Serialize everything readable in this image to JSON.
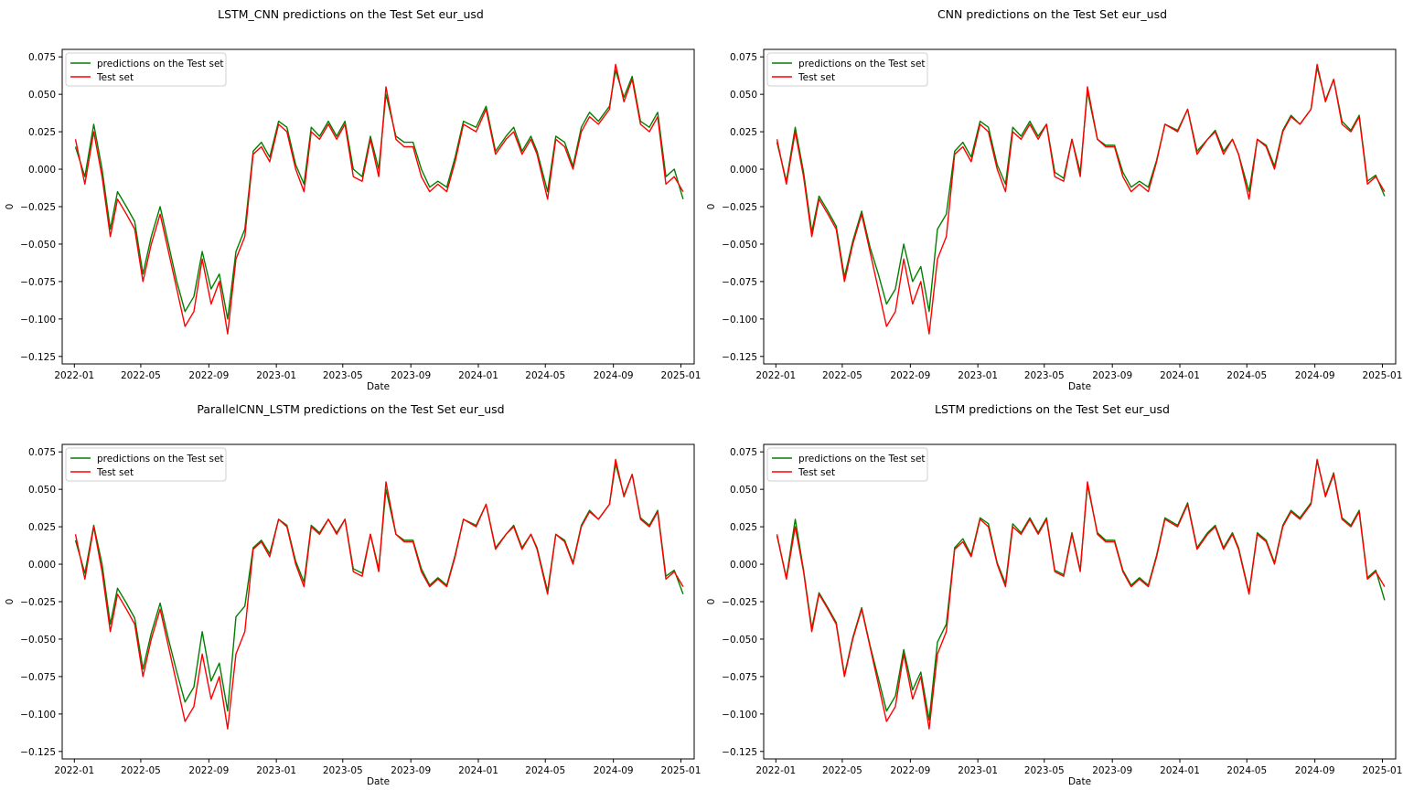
{
  "colors": {
    "prediction": "#008000",
    "test": "#ff0000",
    "axis": "#000000"
  },
  "common": {
    "xlabel": "Date",
    "ylabel": "0",
    "legend": [
      "predictions on the Test set",
      "Test set"
    ],
    "xticks": [
      "2022-01",
      "2022-05",
      "2022-09",
      "2023-01",
      "2023-05",
      "2023-09",
      "2024-01",
      "2024-05",
      "2024-09",
      "2025-01"
    ],
    "yticks": [
      "0.075",
      "0.050",
      "0.025",
      "0.000",
      "−0.025",
      "−0.050",
      "−0.075",
      "−0.100",
      "−0.125"
    ]
  },
  "chart_data": [
    {
      "type": "line",
      "title": "LSTM_CNN predictions on the Test Set eur_usd",
      "xlabel": "Date",
      "ylabel": "0",
      "xlim": [
        "2021-12-10",
        "2025-01-25"
      ],
      "ylim": [
        -0.13,
        0.08
      ],
      "grid": false,
      "legend_position": "upper-left",
      "series": [
        {
          "name": "predictions on the Test set",
          "color": "#008000"
        },
        {
          "name": "Test set",
          "color": "#ff0000"
        }
      ],
      "x": [
        "2022-01-03",
        "2022-01-20",
        "2022-02-05",
        "2022-02-20",
        "2022-03-07",
        "2022-03-20",
        "2022-04-05",
        "2022-04-20",
        "2022-05-05",
        "2022-05-20",
        "2022-06-05",
        "2022-06-20",
        "2022-07-05",
        "2022-07-20",
        "2022-08-05",
        "2022-08-20",
        "2022-09-05",
        "2022-09-20",
        "2022-10-05",
        "2022-10-20",
        "2022-11-05",
        "2022-11-20",
        "2022-12-05",
        "2022-12-20",
        "2023-01-05",
        "2023-01-20",
        "2023-02-05",
        "2023-02-20",
        "2023-03-05",
        "2023-03-20",
        "2023-04-05",
        "2023-04-20",
        "2023-05-05",
        "2023-05-20",
        "2023-06-05",
        "2023-06-20",
        "2023-07-05",
        "2023-07-18",
        "2023-08-05",
        "2023-08-20",
        "2023-09-05",
        "2023-09-20",
        "2023-10-05",
        "2023-10-20",
        "2023-11-05",
        "2023-11-20",
        "2023-12-05",
        "2023-12-28",
        "2024-01-15",
        "2024-02-01",
        "2024-02-20",
        "2024-03-05",
        "2024-03-20",
        "2024-04-05",
        "2024-04-16",
        "2024-05-05",
        "2024-05-20",
        "2024-06-05",
        "2024-06-20",
        "2024-07-05",
        "2024-07-20",
        "2024-08-05",
        "2024-08-25",
        "2024-09-05",
        "2024-09-20",
        "2024-10-05",
        "2024-10-20",
        "2024-11-05",
        "2024-11-20",
        "2024-12-05",
        "2024-12-20",
        "2025-01-05"
      ],
      "test": [
        0.02,
        -0.01,
        0.025,
        -0.005,
        -0.045,
        -0.02,
        -0.03,
        -0.04,
        -0.075,
        -0.05,
        -0.03,
        -0.055,
        -0.08,
        -0.105,
        -0.095,
        -0.06,
        -0.09,
        -0.075,
        -0.11,
        -0.06,
        -0.045,
        0.01,
        0.015,
        0.005,
        0.03,
        0.025,
        0.0,
        -0.015,
        0.025,
        0.02,
        0.03,
        0.02,
        0.03,
        -0.005,
        -0.008,
        0.02,
        -0.005,
        0.055,
        0.02,
        0.015,
        0.015,
        -0.005,
        -0.015,
        -0.01,
        -0.015,
        0.005,
        0.03,
        0.025,
        0.04,
        0.01,
        0.02,
        0.025,
        0.01,
        0.02,
        0.01,
        -0.02,
        0.02,
        0.015,
        0.0,
        0.025,
        0.035,
        0.03,
        0.04,
        0.07,
        0.045,
        0.06,
        0.03,
        0.025,
        0.035,
        -0.01,
        -0.005,
        -0.015
      ],
      "pred": [
        0.015,
        -0.005,
        0.03,
        0.0,
        -0.04,
        -0.015,
        -0.025,
        -0.035,
        -0.07,
        -0.045,
        -0.025,
        -0.05,
        -0.075,
        -0.095,
        -0.085,
        -0.055,
        -0.08,
        -0.07,
        -0.1,
        -0.055,
        -0.04,
        0.012,
        0.018,
        0.008,
        0.032,
        0.028,
        0.003,
        -0.01,
        0.028,
        0.022,
        0.032,
        0.022,
        0.032,
        0.0,
        -0.005,
        0.022,
        0.0,
        0.05,
        0.022,
        0.018,
        0.018,
        0.0,
        -0.012,
        -0.008,
        -0.012,
        0.008,
        0.032,
        0.028,
        0.042,
        0.012,
        0.022,
        0.028,
        0.012,
        0.022,
        0.012,
        -0.015,
        0.022,
        0.018,
        0.002,
        0.028,
        0.038,
        0.032,
        0.042,
        0.066,
        0.048,
        0.062,
        0.032,
        0.028,
        0.038,
        -0.005,
        0.0,
        -0.02
      ]
    },
    {
      "type": "line",
      "title": "CNN predictions on the Test Set eur_usd",
      "xlabel": "Date",
      "ylabel": "0",
      "xlim": [
        "2021-12-10",
        "2025-01-25"
      ],
      "ylim": [
        -0.13,
        0.08
      ],
      "grid": false,
      "legend_position": "upper-left",
      "series": [
        {
          "name": "predictions on the Test set",
          "color": "#008000"
        },
        {
          "name": "Test set",
          "color": "#ff0000"
        }
      ],
      "x": [
        "2022-01-03",
        "2022-01-20",
        "2022-02-05",
        "2022-02-20",
        "2022-03-07",
        "2022-03-20",
        "2022-04-05",
        "2022-04-20",
        "2022-05-05",
        "2022-05-20",
        "2022-06-05",
        "2022-06-20",
        "2022-07-05",
        "2022-07-20",
        "2022-08-05",
        "2022-08-20",
        "2022-09-05",
        "2022-09-20",
        "2022-10-05",
        "2022-10-20",
        "2022-11-05",
        "2022-11-20",
        "2022-12-05",
        "2022-12-20",
        "2023-01-05",
        "2023-01-20",
        "2023-02-05",
        "2023-02-20",
        "2023-03-05",
        "2023-03-20",
        "2023-04-05",
        "2023-04-20",
        "2023-05-05",
        "2023-05-20",
        "2023-06-05",
        "2023-06-20",
        "2023-07-05",
        "2023-07-18",
        "2023-08-05",
        "2023-08-20",
        "2023-09-05",
        "2023-09-20",
        "2023-10-05",
        "2023-10-20",
        "2023-11-05",
        "2023-11-20",
        "2023-12-05",
        "2023-12-28",
        "2024-01-15",
        "2024-02-01",
        "2024-02-20",
        "2024-03-05",
        "2024-03-20",
        "2024-04-05",
        "2024-04-16",
        "2024-05-05",
        "2024-05-20",
        "2024-06-05",
        "2024-06-20",
        "2024-07-05",
        "2024-07-20",
        "2024-08-05",
        "2024-08-25",
        "2024-09-05",
        "2024-09-20",
        "2024-10-05",
        "2024-10-20",
        "2024-11-05",
        "2024-11-20",
        "2024-12-05",
        "2024-12-20",
        "2025-01-05"
      ],
      "test": [
        0.02,
        -0.01,
        0.025,
        -0.005,
        -0.045,
        -0.02,
        -0.03,
        -0.04,
        -0.075,
        -0.05,
        -0.03,
        -0.055,
        -0.08,
        -0.105,
        -0.095,
        -0.06,
        -0.09,
        -0.075,
        -0.11,
        -0.06,
        -0.045,
        0.01,
        0.015,
        0.005,
        0.03,
        0.025,
        0.0,
        -0.015,
        0.025,
        0.02,
        0.03,
        0.02,
        0.03,
        -0.005,
        -0.008,
        0.02,
        -0.005,
        0.055,
        0.02,
        0.015,
        0.015,
        -0.005,
        -0.015,
        -0.01,
        -0.015,
        0.005,
        0.03,
        0.025,
        0.04,
        0.01,
        0.02,
        0.025,
        0.01,
        0.02,
        0.01,
        -0.02,
        0.02,
        0.015,
        0.0,
        0.025,
        0.035,
        0.03,
        0.04,
        0.07,
        0.045,
        0.06,
        0.03,
        0.025,
        0.035,
        -0.01,
        -0.005,
        -0.015
      ],
      "pred": [
        0.018,
        -0.008,
        0.028,
        -0.002,
        -0.042,
        -0.018,
        -0.028,
        -0.038,
        -0.072,
        -0.048,
        -0.028,
        -0.052,
        -0.07,
        -0.09,
        -0.08,
        -0.05,
        -0.075,
        -0.065,
        -0.095,
        -0.04,
        -0.03,
        0.012,
        0.018,
        0.008,
        0.032,
        0.028,
        0.003,
        -0.01,
        0.028,
        0.022,
        0.032,
        0.022,
        0.03,
        -0.002,
        -0.006,
        0.02,
        -0.002,
        0.052,
        0.02,
        0.016,
        0.016,
        -0.002,
        -0.012,
        -0.008,
        -0.012,
        0.006,
        0.03,
        0.026,
        0.04,
        0.012,
        0.02,
        0.026,
        0.012,
        0.02,
        0.01,
        -0.015,
        0.02,
        0.016,
        0.002,
        0.026,
        0.036,
        0.03,
        0.04,
        0.068,
        0.046,
        0.06,
        0.032,
        0.026,
        0.036,
        -0.008,
        -0.004,
        -0.018
      ]
    },
    {
      "type": "line",
      "title": "ParallelCNN_LSTM predictions on the Test Set eur_usd",
      "xlabel": "Date",
      "ylabel": "0",
      "xlim": [
        "2021-12-10",
        "2025-01-25"
      ],
      "ylim": [
        -0.13,
        0.08
      ],
      "grid": false,
      "legend_position": "upper-left",
      "series": [
        {
          "name": "predictions on the Test set",
          "color": "#008000"
        },
        {
          "name": "Test set",
          "color": "#ff0000"
        }
      ],
      "x": [
        "2022-01-03",
        "2022-01-20",
        "2022-02-05",
        "2022-02-20",
        "2022-03-07",
        "2022-03-20",
        "2022-04-05",
        "2022-04-20",
        "2022-05-05",
        "2022-05-20",
        "2022-06-05",
        "2022-06-20",
        "2022-07-05",
        "2022-07-20",
        "2022-08-05",
        "2022-08-20",
        "2022-09-05",
        "2022-09-20",
        "2022-10-05",
        "2022-10-20",
        "2022-11-05",
        "2022-11-20",
        "2022-12-05",
        "2022-12-20",
        "2023-01-05",
        "2023-01-20",
        "2023-02-05",
        "2023-02-20",
        "2023-03-05",
        "2023-03-20",
        "2023-04-05",
        "2023-04-20",
        "2023-05-05",
        "2023-05-20",
        "2023-06-05",
        "2023-06-20",
        "2023-07-05",
        "2023-07-18",
        "2023-08-05",
        "2023-08-20",
        "2023-09-05",
        "2023-09-20",
        "2023-10-05",
        "2023-10-20",
        "2023-11-05",
        "2023-11-20",
        "2023-12-05",
        "2023-12-28",
        "2024-01-15",
        "2024-02-01",
        "2024-02-20",
        "2024-03-05",
        "2024-03-20",
        "2024-04-05",
        "2024-04-16",
        "2024-05-05",
        "2024-05-20",
        "2024-06-05",
        "2024-06-20",
        "2024-07-05",
        "2024-07-20",
        "2024-08-05",
        "2024-08-25",
        "2024-09-05",
        "2024-09-20",
        "2024-10-05",
        "2024-10-20",
        "2024-11-05",
        "2024-11-20",
        "2024-12-05",
        "2024-12-20",
        "2025-01-05"
      ],
      "test": [
        0.02,
        -0.01,
        0.025,
        -0.005,
        -0.045,
        -0.02,
        -0.03,
        -0.04,
        -0.075,
        -0.05,
        -0.03,
        -0.055,
        -0.08,
        -0.105,
        -0.095,
        -0.06,
        -0.09,
        -0.075,
        -0.11,
        -0.06,
        -0.045,
        0.01,
        0.015,
        0.005,
        0.03,
        0.025,
        0.0,
        -0.015,
        0.025,
        0.02,
        0.03,
        0.02,
        0.03,
        -0.005,
        -0.008,
        0.02,
        -0.005,
        0.055,
        0.02,
        0.015,
        0.015,
        -0.005,
        -0.015,
        -0.01,
        -0.015,
        0.005,
        0.03,
        0.025,
        0.04,
        0.01,
        0.02,
        0.025,
        0.01,
        0.02,
        0.01,
        -0.02,
        0.02,
        0.015,
        0.0,
        0.025,
        0.035,
        0.03,
        0.04,
        0.07,
        0.045,
        0.06,
        0.03,
        0.025,
        0.035,
        -0.01,
        -0.005,
        -0.015
      ],
      "pred": [
        0.016,
        -0.006,
        0.026,
        0.0,
        -0.04,
        -0.016,
        -0.026,
        -0.036,
        -0.07,
        -0.046,
        -0.026,
        -0.05,
        -0.072,
        -0.092,
        -0.082,
        -0.045,
        -0.078,
        -0.066,
        -0.098,
        -0.035,
        -0.028,
        0.011,
        0.016,
        0.007,
        0.03,
        0.026,
        0.002,
        -0.012,
        0.026,
        0.021,
        0.03,
        0.021,
        0.03,
        -0.003,
        -0.006,
        0.02,
        -0.003,
        0.05,
        0.02,
        0.016,
        0.016,
        -0.003,
        -0.014,
        -0.009,
        -0.014,
        0.006,
        0.03,
        0.026,
        0.04,
        0.011,
        0.02,
        0.026,
        0.011,
        0.02,
        0.011,
        -0.018,
        0.02,
        0.016,
        0.001,
        0.026,
        0.036,
        0.03,
        0.04,
        0.067,
        0.046,
        0.06,
        0.031,
        0.026,
        0.036,
        -0.008,
        -0.004,
        -0.02
      ]
    },
    {
      "type": "line",
      "title": "LSTM predictions on the Test Set eur_usd",
      "xlabel": "Date",
      "ylabel": "0",
      "xlim": [
        "2021-12-10",
        "2025-01-25"
      ],
      "ylim": [
        -0.13,
        0.08
      ],
      "grid": false,
      "legend_position": "upper-left",
      "series": [
        {
          "name": "predictions on the Test set",
          "color": "#008000"
        },
        {
          "name": "Test set",
          "color": "#ff0000"
        }
      ],
      "x": [
        "2022-01-03",
        "2022-01-20",
        "2022-02-05",
        "2022-02-20",
        "2022-03-07",
        "2022-03-20",
        "2022-04-05",
        "2022-04-20",
        "2022-05-05",
        "2022-05-20",
        "2022-06-05",
        "2022-06-20",
        "2022-07-05",
        "2022-07-20",
        "2022-08-05",
        "2022-08-20",
        "2022-09-05",
        "2022-09-20",
        "2022-10-05",
        "2022-10-20",
        "2022-11-05",
        "2022-11-20",
        "2022-12-05",
        "2022-12-20",
        "2023-01-05",
        "2023-01-20",
        "2023-02-05",
        "2023-02-20",
        "2023-03-05",
        "2023-03-20",
        "2023-04-05",
        "2023-04-20",
        "2023-05-05",
        "2023-05-20",
        "2023-06-05",
        "2023-06-20",
        "2023-07-05",
        "2023-07-18",
        "2023-08-05",
        "2023-08-20",
        "2023-09-05",
        "2023-09-20",
        "2023-10-05",
        "2023-10-20",
        "2023-11-05",
        "2023-11-20",
        "2023-12-05",
        "2023-12-28",
        "2024-01-15",
        "2024-02-01",
        "2024-02-20",
        "2024-03-05",
        "2024-03-20",
        "2024-04-05",
        "2024-04-16",
        "2024-05-05",
        "2024-05-20",
        "2024-06-05",
        "2024-06-20",
        "2024-07-05",
        "2024-07-20",
        "2024-08-05",
        "2024-08-25",
        "2024-09-05",
        "2024-09-20",
        "2024-10-05",
        "2024-10-20",
        "2024-11-05",
        "2024-11-20",
        "2024-12-05",
        "2024-12-20",
        "2025-01-05"
      ],
      "test": [
        0.02,
        -0.01,
        0.025,
        -0.005,
        -0.045,
        -0.02,
        -0.03,
        -0.04,
        -0.075,
        -0.05,
        -0.03,
        -0.055,
        -0.08,
        -0.105,
        -0.095,
        -0.06,
        -0.09,
        -0.075,
        -0.11,
        -0.06,
        -0.045,
        0.01,
        0.015,
        0.005,
        0.03,
        0.025,
        0.0,
        -0.015,
        0.025,
        0.02,
        0.03,
        0.02,
        0.03,
        -0.005,
        -0.008,
        0.02,
        -0.005,
        0.055,
        0.02,
        0.015,
        0.015,
        -0.005,
        -0.015,
        -0.01,
        -0.015,
        0.005,
        0.03,
        0.025,
        0.04,
        0.01,
        0.02,
        0.025,
        0.01,
        0.02,
        0.01,
        -0.02,
        0.02,
        0.015,
        0.0,
        0.025,
        0.035,
        0.03,
        0.04,
        0.07,
        0.045,
        0.06,
        0.03,
        0.025,
        0.035,
        -0.01,
        -0.005,
        -0.015
      ],
      "pred": [
        0.019,
        -0.009,
        0.03,
        -0.004,
        -0.043,
        -0.019,
        -0.029,
        -0.039,
        -0.074,
        -0.049,
        -0.029,
        -0.054,
        -0.076,
        -0.098,
        -0.088,
        -0.057,
        -0.084,
        -0.072,
        -0.104,
        -0.052,
        -0.04,
        0.011,
        0.017,
        0.006,
        0.031,
        0.027,
        0.001,
        -0.013,
        0.027,
        0.021,
        0.031,
        0.021,
        0.031,
        -0.004,
        -0.007,
        0.021,
        -0.004,
        0.053,
        0.021,
        0.016,
        0.016,
        -0.004,
        -0.014,
        -0.009,
        -0.014,
        0.006,
        0.031,
        0.026,
        0.041,
        0.011,
        0.021,
        0.026,
        0.011,
        0.021,
        0.011,
        -0.019,
        0.021,
        0.016,
        0.001,
        0.026,
        0.036,
        0.031,
        0.041,
        0.069,
        0.046,
        0.061,
        0.031,
        0.026,
        0.036,
        -0.009,
        -0.004,
        -0.024
      ]
    }
  ]
}
